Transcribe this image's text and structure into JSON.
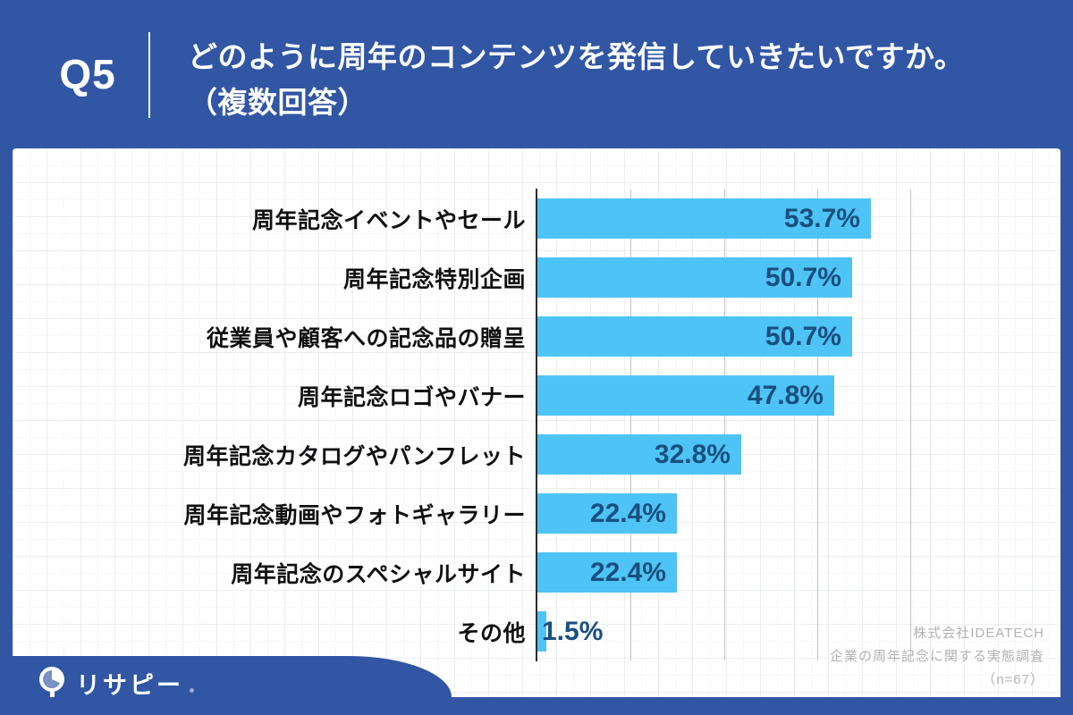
{
  "header": {
    "question_no": "Q5",
    "title_line1": "どのように周年のコンテンツを発信していきたいですか。",
    "title_line2": "（複数回答）"
  },
  "chart_data": {
    "type": "bar",
    "orientation": "horizontal",
    "title": "どのように周年のコンテンツを発信していきたいですか。（複数回答）",
    "categories": [
      "周年記念イベントやセール",
      "周年記念特別企画",
      "従業員や顧客への記念品の贈呈",
      "周年記念ロゴやバナー",
      "周年記念カタログやパンフレット",
      "周年記念動画やフォトギャラリー",
      "周年記念のスペシャルサイト",
      "その他"
    ],
    "values": [
      53.7,
      50.7,
      50.7,
      47.8,
      32.8,
      22.4,
      22.4,
      1.5
    ],
    "value_labels": [
      "53.7%",
      "50.7%",
      "50.7%",
      "47.8%",
      "32.8%",
      "22.4%",
      "22.4%",
      "1.5%"
    ],
    "unit": "%",
    "xlim": [
      0,
      60
    ],
    "gridlines": [
      15,
      30,
      45,
      60
    ],
    "grid": true,
    "legend": false,
    "bar_color": "#4ec3f5",
    "value_text_color": "#1a4f7e"
  },
  "footer": {
    "lines": [
      "株式会社IDEATECH",
      "企業の周年記念に関する実態調査",
      "（n=67）"
    ]
  },
  "logo": {
    "text": "リサピー",
    "icon": "pie-chart-pin-icon"
  },
  "colors": {
    "frame_blue": "#3156a4",
    "bar_blue": "#4ec3f5",
    "value_navy": "#1a4f7e",
    "label_black": "#111111",
    "footer_gray": "#b2b2b2"
  }
}
